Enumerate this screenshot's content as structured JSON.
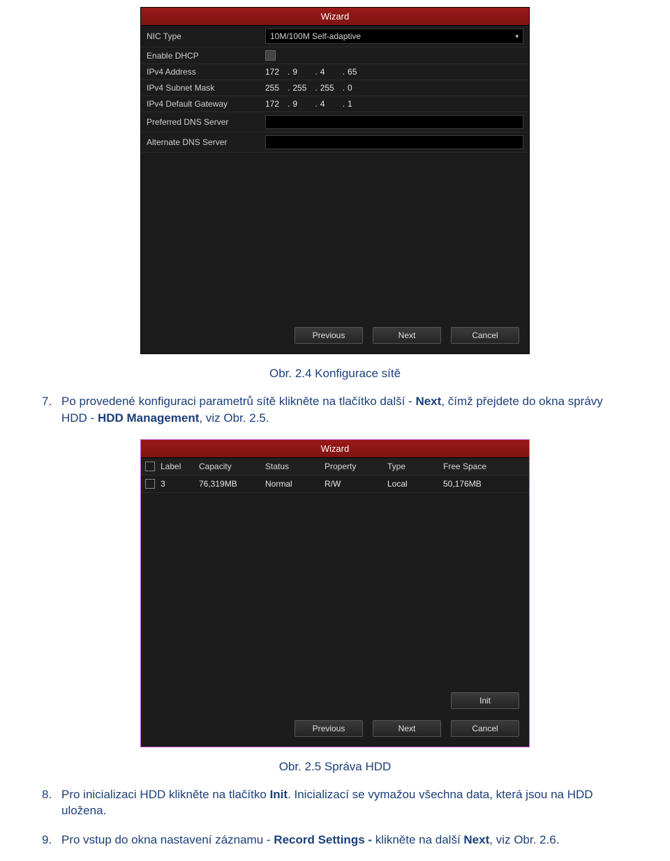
{
  "wizard_title": "Wizard",
  "network": {
    "rows": {
      "nic_type": {
        "label": "NIC Type",
        "value": "10M/100M Self-adaptive"
      },
      "dhcp": {
        "label": "Enable DHCP"
      },
      "ipv4_addr": {
        "label": "IPv4 Address",
        "a": "172",
        "b": "9",
        "c": "4",
        "d": "65"
      },
      "ipv4_mask": {
        "label": "IPv4 Subnet Mask",
        "a": "255",
        "b": "255",
        "c": "255",
        "d": "0"
      },
      "ipv4_gw": {
        "label": "IPv4 Default Gateway",
        "a": "172",
        "b": "9",
        "c": "4",
        "d": "1"
      },
      "pref_dns": {
        "label": "Preferred DNS Server"
      },
      "alt_dns": {
        "label": "Alternate DNS Server"
      }
    }
  },
  "buttons": {
    "previous": "Previous",
    "next": "Next",
    "cancel": "Cancel",
    "init": "Init"
  },
  "caption1": "Obr. 2.4 Konfigurace sítě",
  "para7": {
    "num": "7.",
    "t1": "Po provedené konfiguraci parametrů sítě klikněte na tlačítko další - ",
    "b1": "Next",
    "t2": ", čímž přejdete do okna správy HDD - ",
    "b2": "HDD Management",
    "t3": ", viz Obr. 2.5."
  },
  "hdd_table": {
    "head": {
      "label": "Label",
      "capacity": "Capacity",
      "status": "Status",
      "property": "Property",
      "type": "Type",
      "free": "Free Space"
    },
    "row": {
      "label": "3",
      "capacity": "76,319MB",
      "status": "Normal",
      "property": "R/W",
      "type": "Local",
      "free": "50,176MB"
    }
  },
  "caption2": "Obr. 2.5 Správa HDD",
  "para8": {
    "num": "8.",
    "t1": "Pro inicializaci HDD klikněte na tlačítko ",
    "b1": "Init",
    "t2": ". Inicializací se vymažou všechna data, která jsou na HDD uložena."
  },
  "para9": {
    "num": "9.",
    "t1": "Pro vstup do okna nastavení záznamu - ",
    "b1": "Record Settings - ",
    "t2": "klikněte na další ",
    "b2": "Next",
    "t3": ", viz Obr. 2.6."
  }
}
